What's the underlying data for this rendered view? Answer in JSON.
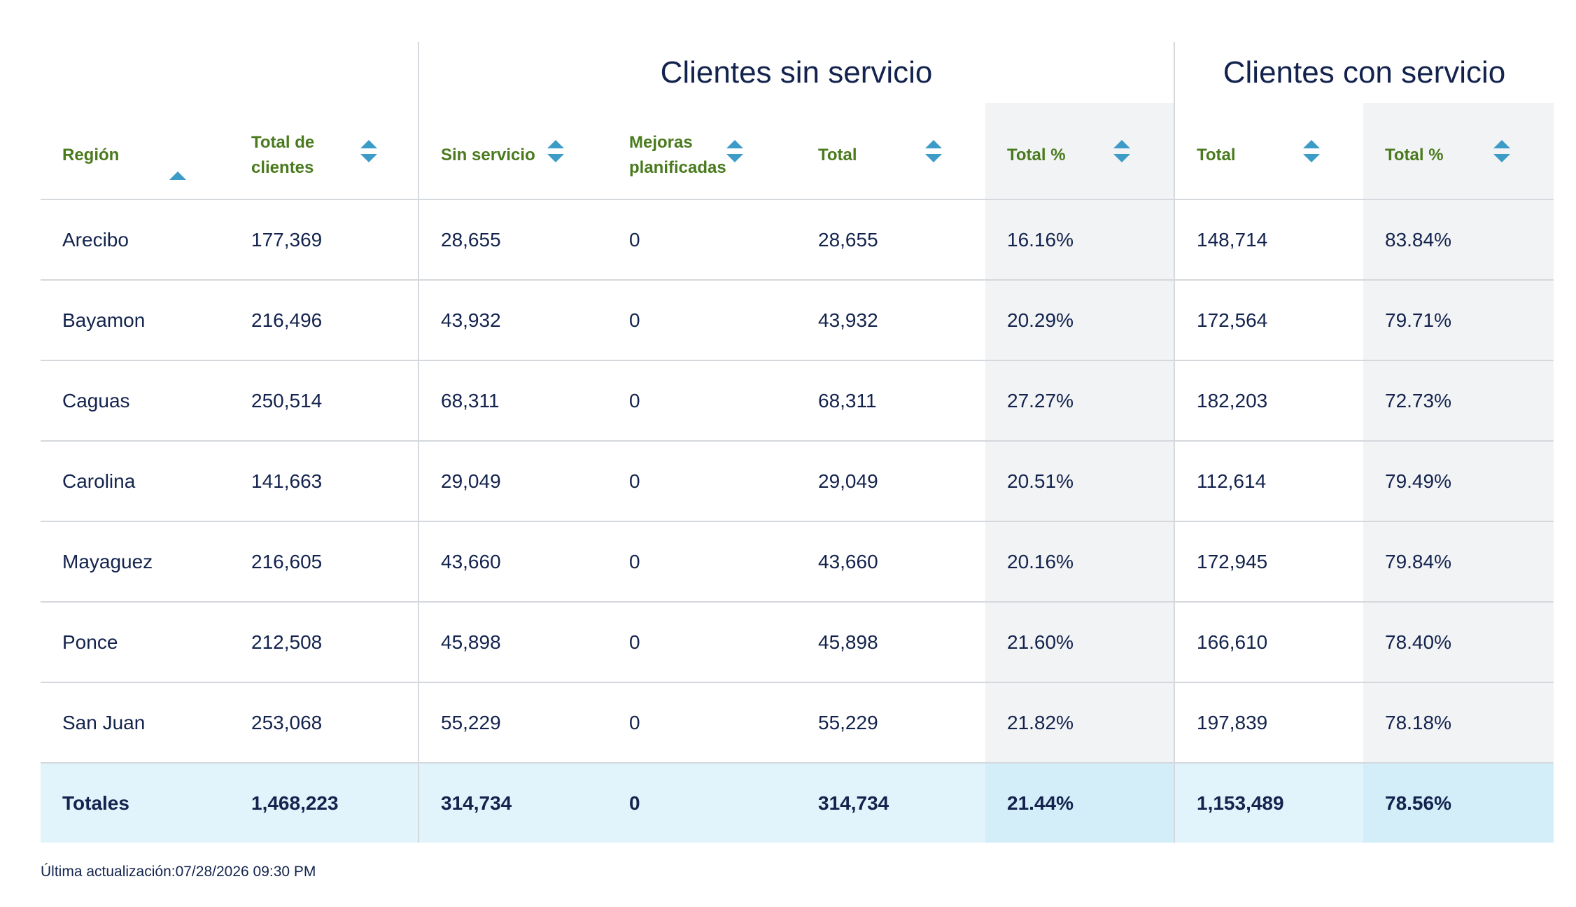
{
  "groups": {
    "sin_servicio": "Clientes sin servicio",
    "con_servicio": "Clientes con servicio"
  },
  "columns": {
    "region": "Región",
    "total_clientes": "Total de clientes",
    "sin_servicio": "Sin servicio",
    "mejoras": "Mejoras planificadas",
    "sin_total": "Total",
    "sin_total_pct": "Total %",
    "con_total": "Total",
    "con_total_pct": "Total %"
  },
  "rows": [
    {
      "region": "Arecibo",
      "total_clientes": "177,369",
      "sin_servicio": "28,655",
      "mejoras": "0",
      "sin_total": "28,655",
      "sin_total_pct": "16.16%",
      "con_total": "148,714",
      "con_total_pct": "83.84%"
    },
    {
      "region": "Bayamon",
      "total_clientes": "216,496",
      "sin_servicio": "43,932",
      "mejoras": "0",
      "sin_total": "43,932",
      "sin_total_pct": "20.29%",
      "con_total": "172,564",
      "con_total_pct": "79.71%"
    },
    {
      "region": "Caguas",
      "total_clientes": "250,514",
      "sin_servicio": "68,311",
      "mejoras": "0",
      "sin_total": "68,311",
      "sin_total_pct": "27.27%",
      "con_total": "182,203",
      "con_total_pct": "72.73%"
    },
    {
      "region": "Carolina",
      "total_clientes": "141,663",
      "sin_servicio": "29,049",
      "mejoras": "0",
      "sin_total": "29,049",
      "sin_total_pct": "20.51%",
      "con_total": "112,614",
      "con_total_pct": "79.49%"
    },
    {
      "region": "Mayaguez",
      "total_clientes": "216,605",
      "sin_servicio": "43,660",
      "mejoras": "0",
      "sin_total": "43,660",
      "sin_total_pct": "20.16%",
      "con_total": "172,945",
      "con_total_pct": "79.84%"
    },
    {
      "region": "Ponce",
      "total_clientes": "212,508",
      "sin_servicio": "45,898",
      "mejoras": "0",
      "sin_total": "45,898",
      "sin_total_pct": "21.60%",
      "con_total": "166,610",
      "con_total_pct": "78.40%"
    },
    {
      "region": "San Juan",
      "total_clientes": "253,068",
      "sin_servicio": "55,229",
      "mejoras": "0",
      "sin_total": "55,229",
      "sin_total_pct": "21.82%",
      "con_total": "197,839",
      "con_total_pct": "78.18%"
    }
  ],
  "totals": {
    "region": "Totales",
    "total_clientes": "1,468,223",
    "sin_servicio": "314,734",
    "mejoras": "0",
    "sin_total": "314,734",
    "sin_total_pct": "21.44%",
    "con_total": "1,153,489",
    "con_total_pct": "78.56%"
  },
  "footer": "Última actualización:07/28/2026 09:30 PM",
  "colors": {
    "header_label": "#4a7a1e",
    "sort_icon": "#3d9bc7",
    "text": "#13234d",
    "shaded_column": "#f2f3f5",
    "totals_row": "#e1f4fb",
    "totals_row_shaded": "#d3eef9",
    "divider": "#d5d8dc"
  }
}
